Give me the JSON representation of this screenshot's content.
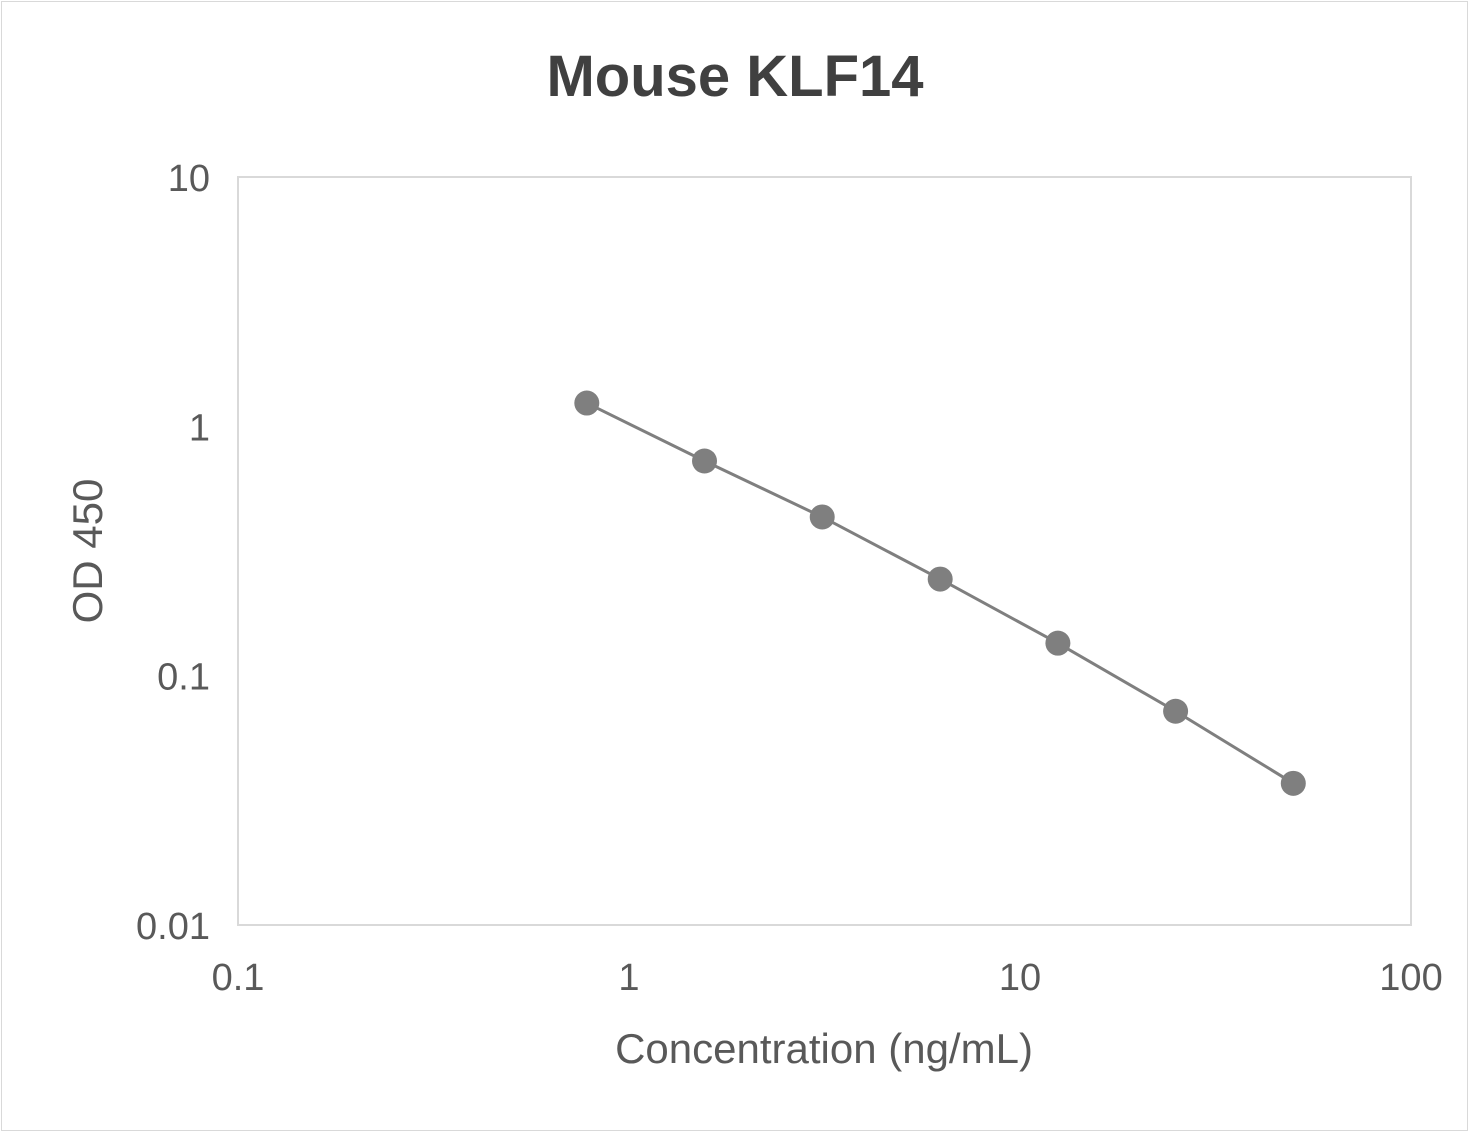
{
  "chart_data": {
    "type": "line",
    "title": "Mouse KLF14",
    "xlabel": "Concentration (ng/mL)",
    "ylabel": "OD 450",
    "xscale": "log",
    "yscale": "log",
    "xlim": [
      0.1,
      100
    ],
    "ylim": [
      0.01,
      10
    ],
    "xticks": [
      "0.1",
      "1",
      "10",
      "100"
    ],
    "yticks": [
      "0.01",
      "0.1",
      "1",
      "10"
    ],
    "grid": false,
    "legend": "none",
    "series": [
      {
        "color": "#7f7f7f",
        "markers": true,
        "x": [
          0.78,
          1.56,
          3.12,
          6.25,
          12.5,
          25,
          50
        ],
        "y": [
          1.24,
          0.726,
          0.433,
          0.244,
          0.135,
          0.072,
          0.037
        ]
      }
    ]
  }
}
